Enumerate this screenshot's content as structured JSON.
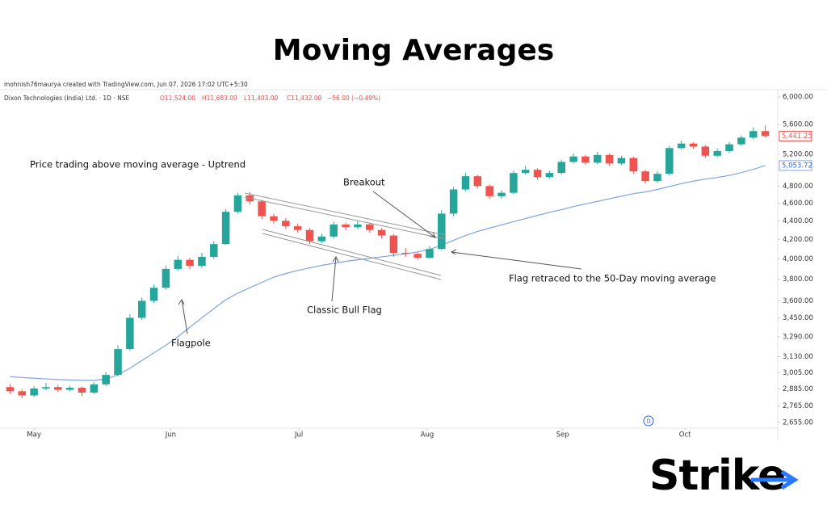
{
  "chart_data": {
    "type": "candlestick",
    "title": "Moving Averages",
    "credit": "mohnish76maurya created with TradingView.com, Jun 07, 2026 17:02 UTC+5:30",
    "symbol": "Dixon Technologies (India) Ltd. · 1D · NSE",
    "ohlc_header": [
      "O11,524.00",
      "H11,683.00",
      "L11,403.00",
      "C11,432.00",
      "−56.00 (−0.49%)"
    ],
    "annotations": [
      "Price trading above moving average - Uptrend",
      "Breakout",
      "Flag retraced to the 50-Day moving average",
      "Classic Bull Flag",
      "Flagpole"
    ],
    "brand": "Strike",
    "marker": "D",
    "up_color": "#26a69a",
    "down_color": "#ef5350",
    "open": [
      2900,
      2870,
      2840,
      2890,
      2900,
      2880,
      2895,
      2860,
      2920,
      2990,
      3190,
      3450,
      3600,
      3720,
      3900,
      3990,
      3930,
      4020,
      4150,
      4500,
      4690,
      4620,
      4450,
      4400,
      4340,
      4300,
      4180,
      4230,
      4360,
      4330,
      4360,
      4300,
      4240,
      4060,
      4050,
      4010,
      4100,
      4480,
      4760,
      4920,
      4800,
      4680,
      4720,
      4960,
      5000,
      4910,
      4960,
      5100,
      5170,
      5090,
      5190,
      5080,
      5150,
      4980,
      4860,
      4950,
      5280,
      5340,
      5300,
      5180,
      5240,
      5330,
      5420,
      5510
    ],
    "high": [
      2920,
      2885,
      2905,
      2930,
      2915,
      2910,
      2905,
      2935,
      3010,
      3220,
      3480,
      3630,
      3750,
      3930,
      4030,
      4010,
      4060,
      4180,
      4530,
      4720,
      4730,
      4640,
      4480,
      4430,
      4370,
      4320,
      4260,
      4390,
      4380,
      4400,
      4380,
      4320,
      4260,
      4110,
      4070,
      4130,
      4520,
      4790,
      4960,
      4940,
      4820,
      4750,
      4990,
      5050,
      5020,
      4990,
      5130,
      5210,
      5190,
      5230,
      5210,
      5180,
      5170,
      5000,
      4980,
      5310,
      5380,
      5360,
      5320,
      5270,
      5360,
      5450,
      5560,
      5590
    ],
    "low": [
      2850,
      2820,
      2830,
      2875,
      2865,
      2870,
      2835,
      2850,
      2905,
      2980,
      3180,
      3430,
      3580,
      3700,
      3880,
      3900,
      3910,
      4000,
      4140,
      4480,
      4580,
      4420,
      4370,
      4310,
      4270,
      4150,
      4160,
      4210,
      4300,
      4310,
      4270,
      4210,
      4020,
      4020,
      3990,
      4000,
      4090,
      4450,
      4740,
      4770,
      4650,
      4650,
      4700,
      4940,
      4880,
      4890,
      4940,
      5080,
      5060,
      5070,
      5050,
      5060,
      4950,
      4830,
      4840,
      4930,
      5260,
      5270,
      5150,
      5160,
      5220,
      5310,
      5400,
      5420
    ],
    "close": [
      2870,
      2840,
      2890,
      2900,
      2880,
      2895,
      2860,
      2920,
      2990,
      3190,
      3450,
      3600,
      3720,
      3900,
      3990,
      3930,
      4020,
      4150,
      4500,
      4690,
      4620,
      4450,
      4400,
      4340,
      4300,
      4180,
      4230,
      4360,
      4330,
      4360,
      4300,
      4240,
      4060,
      4050,
      4010,
      4100,
      4480,
      4760,
      4920,
      4800,
      4680,
      4720,
      4960,
      5000,
      4910,
      4960,
      5100,
      5170,
      5090,
      5190,
      5080,
      5150,
      4980,
      4860,
      4950,
      5280,
      5340,
      5300,
      5180,
      5240,
      5330,
      5420,
      5510,
      5441.25
    ],
    "close_label": "5,441.25",
    "series": [
      {
        "name": "50-Day moving average",
        "color": "#7ea6e0",
        "last_label": "5,053.72",
        "values": [
          2977,
          2970,
          2965,
          2960,
          2955,
          2952,
          2950,
          2949,
          2960,
          2990,
          3040,
          3100,
          3160,
          3220,
          3290,
          3370,
          3450,
          3530,
          3610,
          3670,
          3720,
          3770,
          3820,
          3855,
          3885,
          3910,
          3935,
          3955,
          3975,
          3990,
          4005,
          4020,
          4035,
          4050,
          4070,
          4095,
          4140,
          4190,
          4240,
          4285,
          4320,
          4355,
          4390,
          4425,
          4460,
          4495,
          4525,
          4560,
          4590,
          4620,
          4650,
          4680,
          4710,
          4730,
          4760,
          4795,
          4830,
          4860,
          4885,
          4905,
          4930,
          4965,
          5005,
          5053.72
        ]
      }
    ],
    "log_scale": true,
    "grid": false,
    "ylim": [
      2590,
      6125
    ],
    "yticks": [
      {
        "value": 6000,
        "label": "6,000.00"
      },
      {
        "value": 5600,
        "label": "5,600.00"
      },
      {
        "value": 5200,
        "label": "5,200.00"
      },
      {
        "value": 4800,
        "label": "4,800.00"
      },
      {
        "value": 4600,
        "label": "4,600.00"
      },
      {
        "value": 4400,
        "label": "4,400.00"
      },
      {
        "value": 4200,
        "label": "4,200.00"
      },
      {
        "value": 4000,
        "label": "4,000.00"
      },
      {
        "value": 3800,
        "label": "3,800.00"
      },
      {
        "value": 3600,
        "label": "3,600.00"
      },
      {
        "value": 3450,
        "label": "3,450.00"
      },
      {
        "value": 3290,
        "label": "3,290.00"
      },
      {
        "value": 3130,
        "label": "3,130.00"
      },
      {
        "value": 3005,
        "label": "3,005.00"
      },
      {
        "value": 2885,
        "label": "2,885.00"
      },
      {
        "value": 2765,
        "label": "2,765.00"
      },
      {
        "value": 2655,
        "label": "2,655.00"
      }
    ],
    "xticks": [
      {
        "value": 2,
        "label": "May"
      },
      {
        "value": 13.4,
        "label": "Jun"
      },
      {
        "value": 24.1,
        "label": "Jul"
      },
      {
        "value": 34.8,
        "label": "Aug"
      },
      {
        "value": 46.1,
        "label": "Sep"
      },
      {
        "value": 56.3,
        "label": "Oct"
      }
    ]
  }
}
